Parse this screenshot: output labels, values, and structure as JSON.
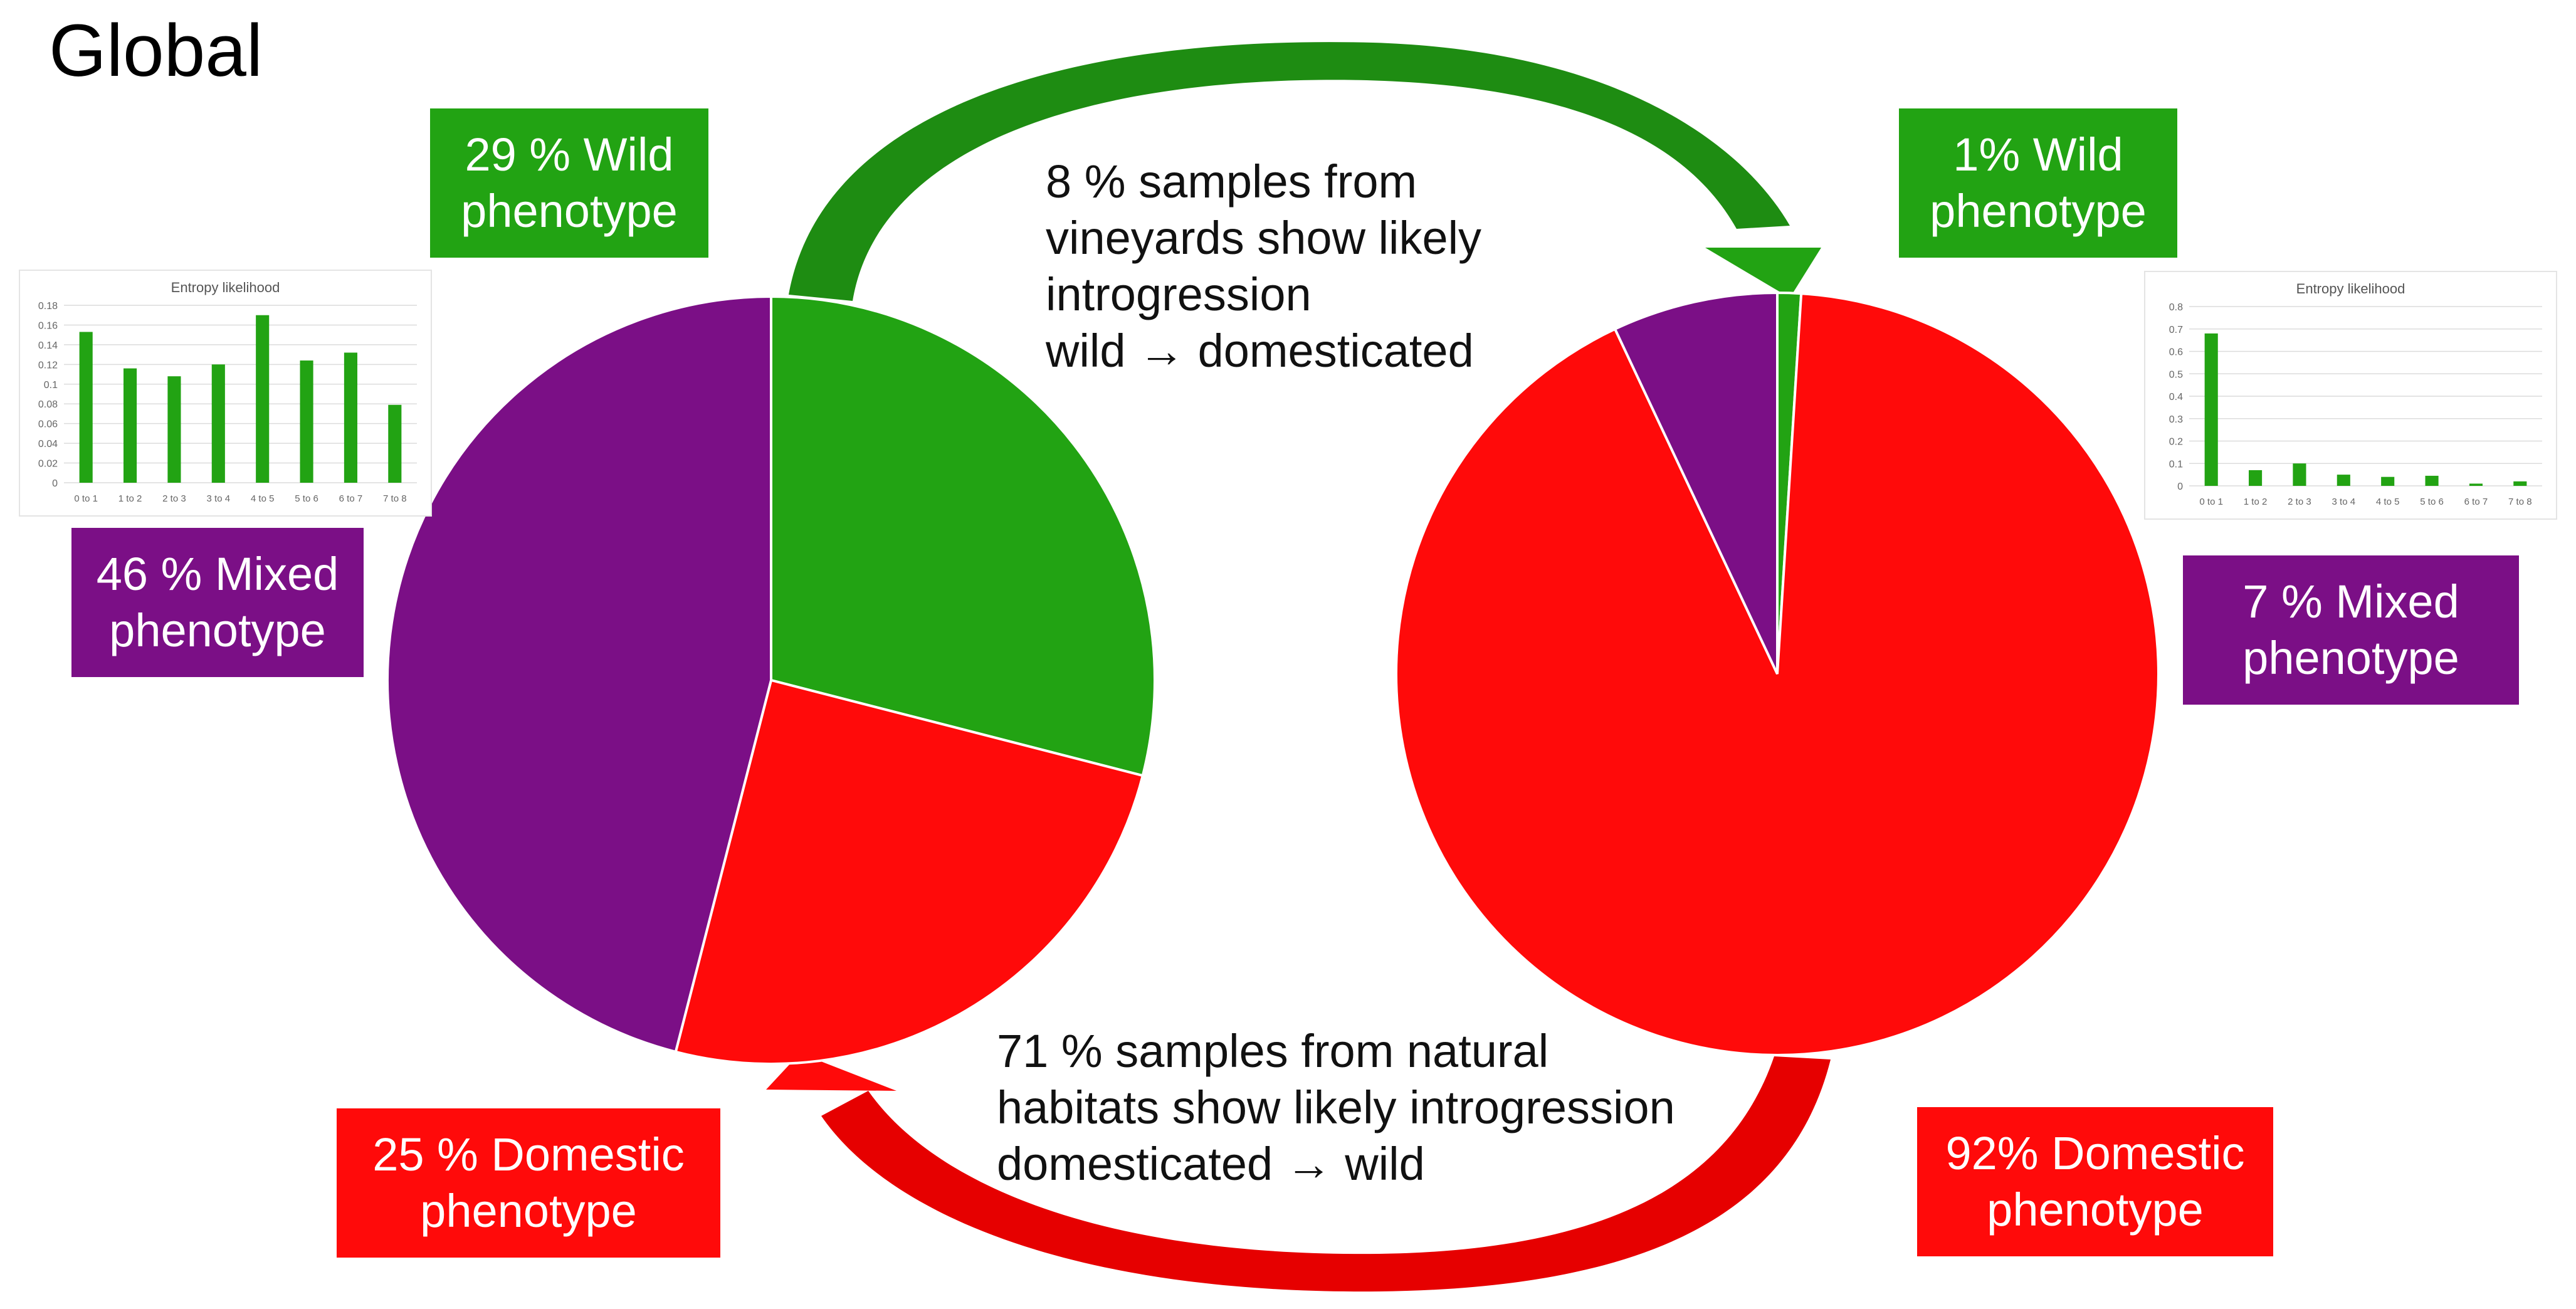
{
  "title": "Global",
  "colors": {
    "wild": "#22a313",
    "domestic": "#ff0a0a",
    "mixed": "#7b0f86",
    "arrow_green": "#1e8c12",
    "arrow_red": "#e60000"
  },
  "boxes": {
    "left_wild": [
      "29 % Wild",
      "phenotype"
    ],
    "left_mixed": [
      "46 % Mixed",
      "phenotype"
    ],
    "left_domestic": [
      "25 % Domestic",
      "phenotype"
    ],
    "right_wild": [
      "1% Wild",
      "phenotype"
    ],
    "right_mixed": [
      "7 % Mixed",
      "phenotype"
    ],
    "right_domestic": [
      "92% Domestic",
      "phenotype"
    ]
  },
  "notes": {
    "top": [
      "8 % samples from",
      "vineyards show likely",
      "introgression",
      "wild → domesticated"
    ],
    "bottom": [
      "71 % samples from natural",
      "habitats show likely introgression",
      "domesticated → wild"
    ]
  },
  "chart_data": [
    {
      "type": "pie",
      "slices": [
        {
          "name": "Wild phenotype",
          "value": 29,
          "color": "#22a313"
        },
        {
          "name": "Domestic phenotype",
          "value": 25,
          "color": "#ff0a0a"
        },
        {
          "name": "Mixed phenotype",
          "value": 46,
          "color": "#7b0f86"
        }
      ]
    },
    {
      "type": "pie",
      "slices": [
        {
          "name": "Wild phenotype",
          "value": 1,
          "color": "#22a313"
        },
        {
          "name": "Domestic phenotype",
          "value": 92,
          "color": "#ff0a0a"
        },
        {
          "name": "Mixed phenotype",
          "value": 7,
          "color": "#7b0f86"
        }
      ]
    },
    {
      "type": "bar",
      "title": "Entropy likelihood",
      "categories": [
        "0 to 1",
        "1 to 2",
        "2 to 3",
        "3 to 4",
        "4 to 5",
        "5 to 6",
        "6 to 7",
        "7 to 8"
      ],
      "values": [
        0.153,
        0.116,
        0.108,
        0.12,
        0.17,
        0.124,
        0.132,
        0.079
      ],
      "yticks": [
        "0",
        "0.02",
        "0.04",
        "0.06",
        "0.08",
        "0.1",
        "0.12",
        "0.14",
        "0.16",
        "0.18"
      ],
      "ylim": [
        0,
        0.18
      ],
      "grid": true,
      "color": "#22a313"
    },
    {
      "type": "bar",
      "title": "Entropy likelihood",
      "categories": [
        "0 to 1",
        "1 to 2",
        "2 to 3",
        "3 to 4",
        "4 to 5",
        "5 to 6",
        "6 to 7",
        "7 to 8"
      ],
      "values": [
        0.68,
        0.07,
        0.1,
        0.05,
        0.04,
        0.045,
        0.01,
        0.02
      ],
      "yticks": [
        "0",
        "0.1",
        "0.2",
        "0.3",
        "0.4",
        "0.5",
        "0.6",
        "0.7",
        "0.8"
      ],
      "ylim": [
        0,
        0.8
      ],
      "grid": true,
      "color": "#22a313"
    }
  ]
}
